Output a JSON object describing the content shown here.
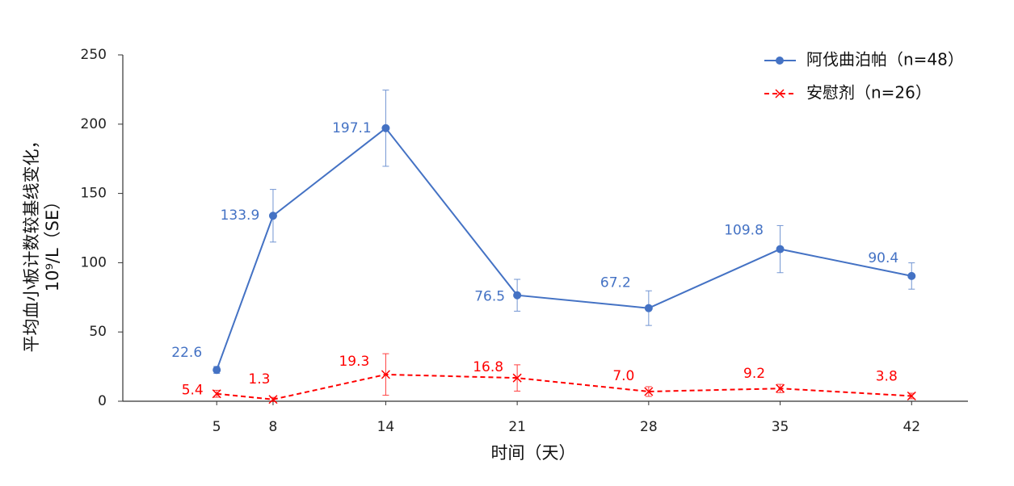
{
  "chart_data": {
    "type": "line",
    "x_label": "时间（天）",
    "y_label": [
      "平均血小板计数较基线变化，",
      "10⁹/L（SE）"
    ],
    "x": [
      5,
      8,
      14,
      21,
      28,
      35,
      42
    ],
    "xlim": [
      0,
      45
    ],
    "xticks": [
      5,
      8,
      14,
      21,
      28,
      35,
      42
    ],
    "ylim": [
      0,
      250
    ],
    "yticks": [
      0,
      50,
      100,
      150,
      200,
      250
    ],
    "grid": false,
    "legend_position": "upper right",
    "series": [
      {
        "name": "阿伐曲泊帕（n=48）",
        "color": "#4472c4",
        "line_style": "solid",
        "marker": "circle",
        "values": [
          22.6,
          133.9,
          197.1,
          76.5,
          67.2,
          109.8,
          90.4
        ],
        "value_labels": [
          "22.6",
          "133.9",
          "197.1",
          "76.5",
          "67.2",
          "109.8",
          "90.4"
        ],
        "errors": [
          2.5,
          19,
          27.5,
          11.5,
          12.5,
          17,
          9.5
        ]
      },
      {
        "name": "安慰剂（n=26）",
        "color": "#ff0000",
        "line_style": "dashed",
        "marker": "x",
        "values": [
          5.4,
          1.3,
          19.3,
          16.8,
          7.0,
          9.2,
          3.8
        ],
        "value_labels": [
          "5.4",
          "1.3",
          "19.3",
          "16.8",
          "7.0",
          "9.2",
          "3.8"
        ],
        "errors": [
          2.5,
          1.5,
          15,
          9.5,
          3.5,
          3,
          2
        ]
      }
    ]
  }
}
